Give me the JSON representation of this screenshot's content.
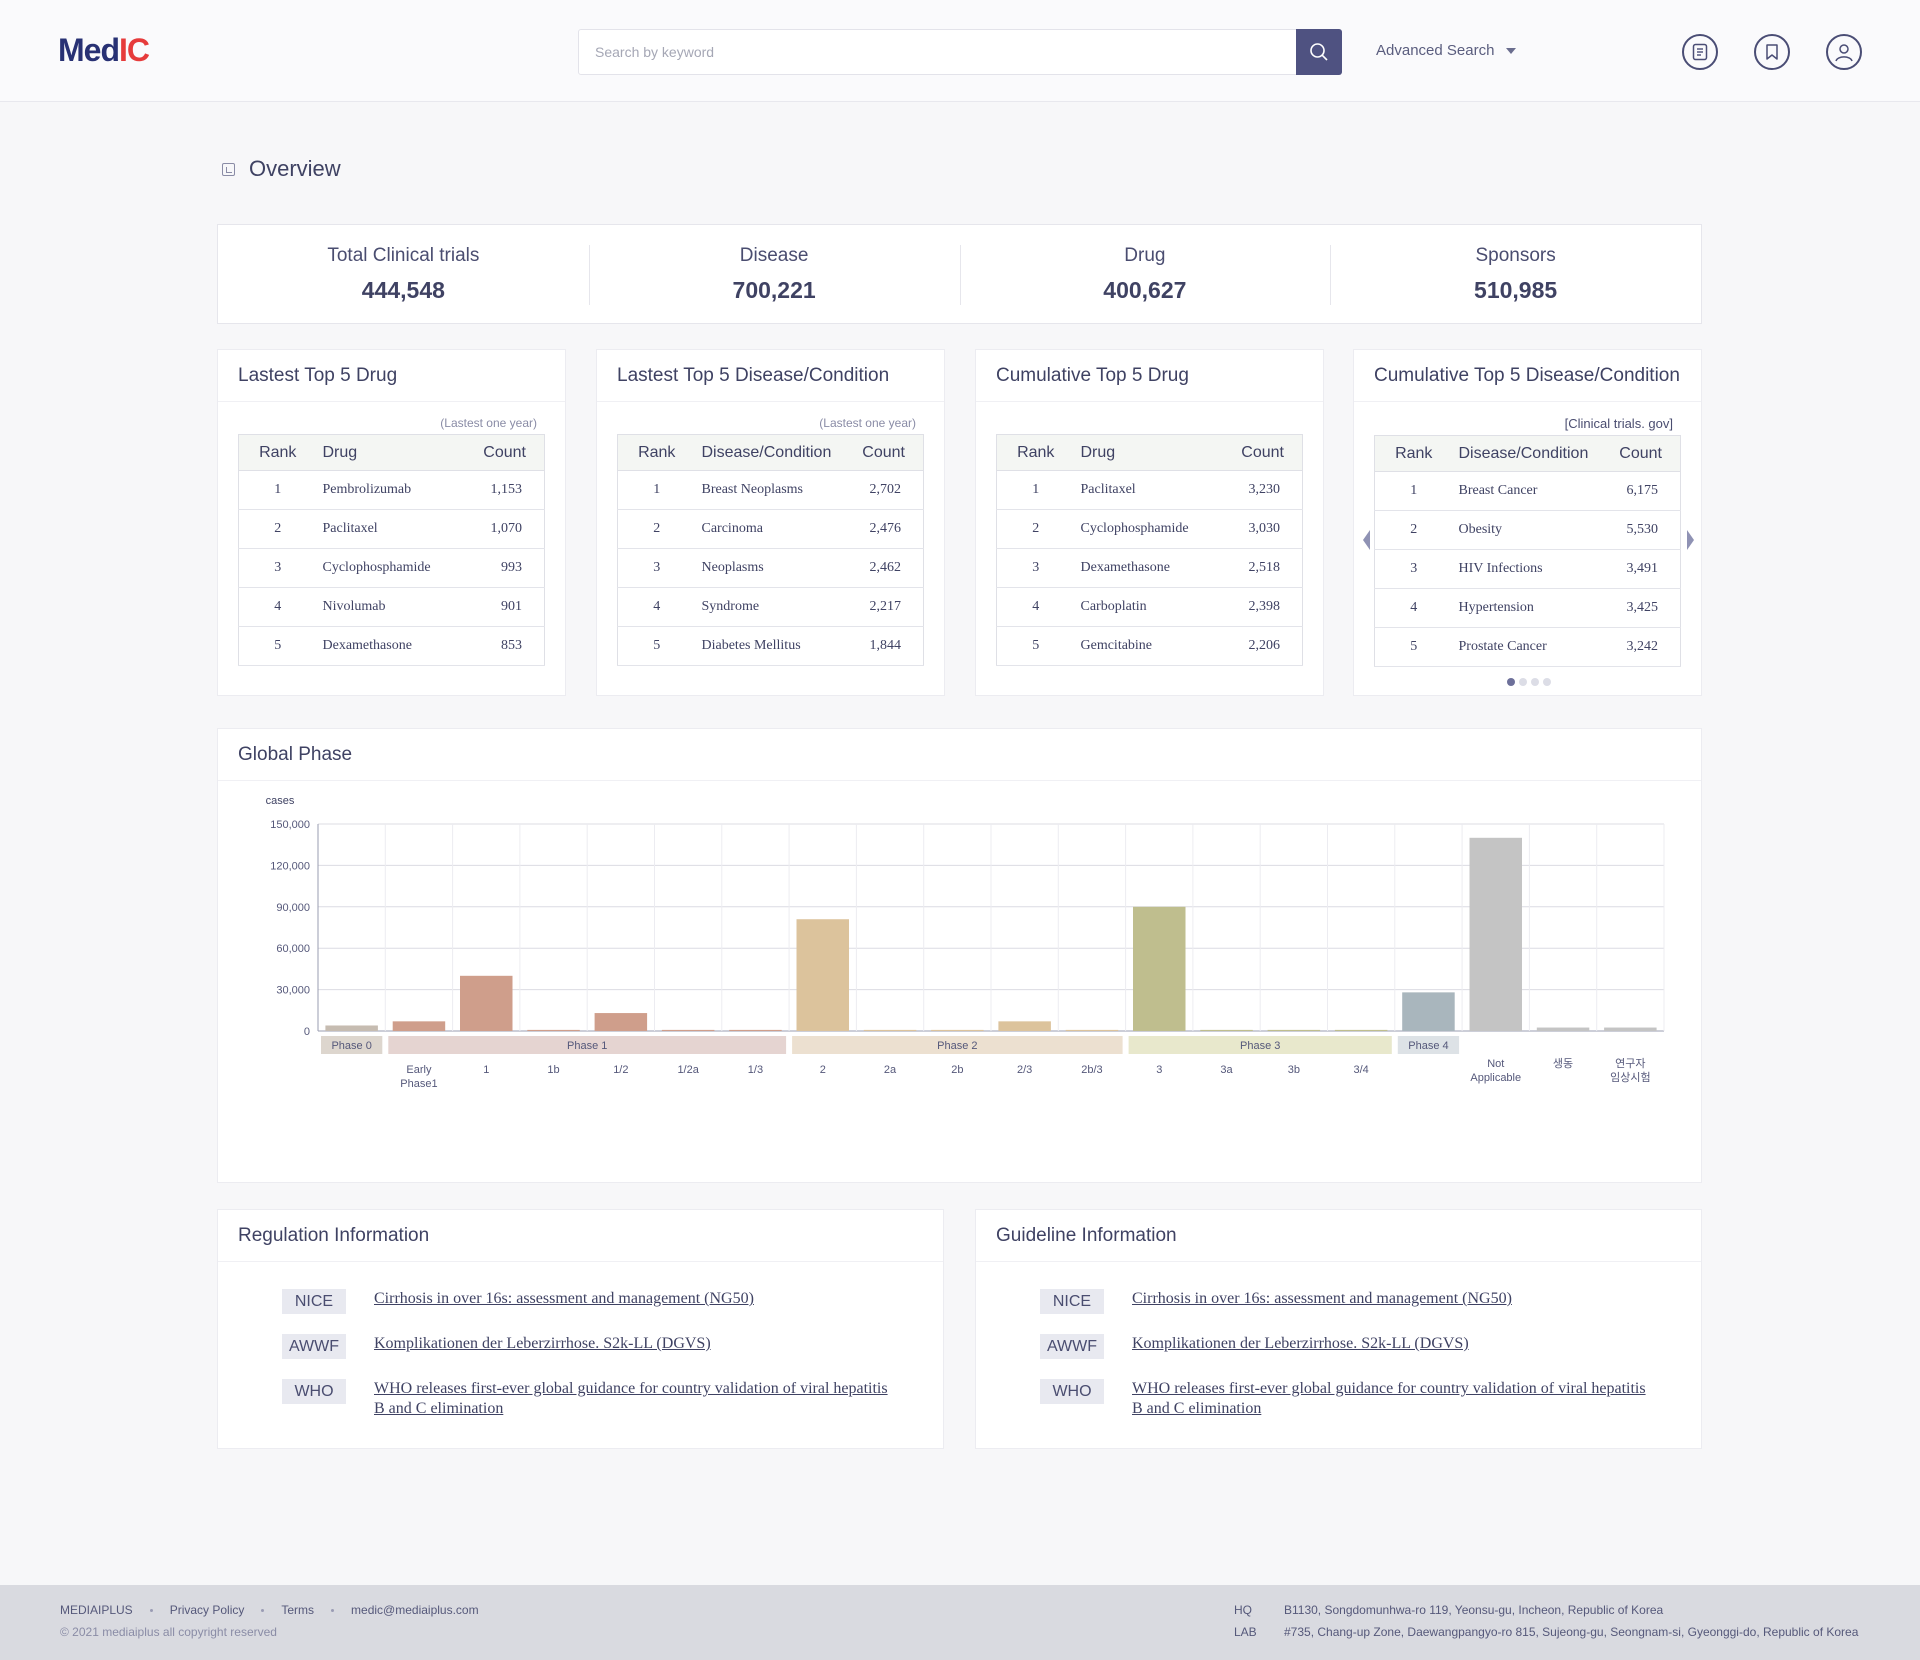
{
  "header": {
    "logo_main": "Med",
    "logo_accent": "IC",
    "search_placeholder": "Search by keyword",
    "advanced_search": "Advanced Search",
    "icons": [
      "list-book-icon",
      "bookmark-icon",
      "user-account-icon"
    ]
  },
  "overview": {
    "title": "Overview",
    "stats": [
      {
        "label": "Total Clinical trials",
        "value": "444,548"
      },
      {
        "label": "Disease",
        "value": "700,221"
      },
      {
        "label": "Drug",
        "value": "400,627"
      },
      {
        "label": "Sponsors",
        "value": "510,985"
      }
    ]
  },
  "cards": [
    {
      "title": "Lastest Top 5 Drug",
      "note": "(Lastest one year)",
      "headers": [
        "Rank",
        "Drug",
        "Count"
      ],
      "rows": [
        [
          "1",
          "Pembrolizumab",
          "1,153"
        ],
        [
          "2",
          "Paclitaxel",
          "1,070"
        ],
        [
          "3",
          "Cyclophosphamide",
          "993"
        ],
        [
          "4",
          "Nivolumab",
          "901"
        ],
        [
          "5",
          "Dexamethasone",
          "853"
        ]
      ]
    },
    {
      "title": "Lastest Top 5 Disease/Condition",
      "note": "(Lastest one year)",
      "headers": [
        "Rank",
        "Disease/Condition",
        "Count"
      ],
      "rows": [
        [
          "1",
          "Breast Neoplasms",
          "2,702"
        ],
        [
          "2",
          "Carcinoma",
          "2,476"
        ],
        [
          "3",
          "Neoplasms",
          "2,462"
        ],
        [
          "4",
          "Syndrome",
          "2,217"
        ],
        [
          "5",
          "Diabetes Mellitus",
          "1,844"
        ]
      ]
    },
    {
      "title": "Cumulative Top 5 Drug",
      "note": "",
      "headers": [
        "Rank",
        "Drug",
        "Count"
      ],
      "rows": [
        [
          "1",
          "Paclitaxel",
          "3,230"
        ],
        [
          "2",
          "Cyclophosphamide",
          "3,030"
        ],
        [
          "3",
          "Dexamethasone",
          "2,518"
        ],
        [
          "4",
          "Carboplatin",
          "2,398"
        ],
        [
          "5",
          "Gemcitabine",
          "2,206"
        ]
      ]
    },
    {
      "title": "Cumulative Top 5 Disease/Condition",
      "note": "[Clinical trials. gov]",
      "headers": [
        "Rank",
        "Disease/Condition",
        "Count"
      ],
      "rows": [
        [
          "1",
          "Breast Cancer",
          "6,175"
        ],
        [
          "2",
          "Obesity",
          "5,530"
        ],
        [
          "3",
          "HIV Infections",
          "3,491"
        ],
        [
          "4",
          "Hypertension",
          "3,425"
        ],
        [
          "5",
          "Prostate Cancer",
          "3,242"
        ]
      ]
    }
  ],
  "carousel": {
    "pages": 4,
    "active": 0
  },
  "global_phase": {
    "title": "Global Phase"
  },
  "chart_data": {
    "type": "bar",
    "title": "Global Phase",
    "ylabel": "cases",
    "ylim": [
      0,
      150000
    ],
    "yticks": [
      0,
      30000,
      60000,
      90000,
      120000,
      150000
    ],
    "ytick_labels": [
      "0",
      "30,000",
      "60,000",
      "90,000",
      "120,000",
      "150,000"
    ],
    "grid": true,
    "categories": [
      "",
      "Early Phase1",
      "1",
      "1b",
      "1/2",
      "1/2a",
      "1/3",
      "2",
      "2a",
      "2b",
      "2/3",
      "2b/3",
      "3",
      "3a",
      "3b",
      "3/4",
      "",
      "Not Applicable",
      "생동",
      "연구자 임상시험"
    ],
    "values": [
      4000,
      7000,
      40000,
      800,
      13000,
      800,
      800,
      81000,
      800,
      800,
      7000,
      800,
      90000,
      800,
      800,
      800,
      28000,
      140000,
      2500,
      2500
    ],
    "colors": [
      "#c6bcb1",
      "#cf9e8b",
      "#cf9e8b",
      "#cf9e8b",
      "#cf9e8b",
      "#cf9e8b",
      "#cf9e8b",
      "#dcc39c",
      "#dcc39c",
      "#dcc39c",
      "#dcc39c",
      "#dcc39c",
      "#bfbe8e",
      "#bfbe8e",
      "#bfbe8e",
      "#bfbe8e",
      "#a9b6bd",
      "#c4c4c4",
      "#c4c4c4",
      "#c4c4c4"
    ],
    "groups": [
      {
        "label": "Phase 0",
        "from": 0,
        "to": 0,
        "color": "#ddd6ce"
      },
      {
        "label": "Phase 1",
        "from": 1,
        "to": 6,
        "color": "#e5d4d1"
      },
      {
        "label": "Phase 2",
        "from": 7,
        "to": 11,
        "color": "#ece0d0"
      },
      {
        "label": "Phase 3",
        "from": 12,
        "to": 15,
        "color": "#e8e8cc"
      },
      {
        "label": "Phase 4",
        "from": 16,
        "to": 16,
        "color": "#dde2e6"
      }
    ]
  },
  "regulation": {
    "title": "Regulation Information",
    "items": [
      {
        "tag": "NICE",
        "text": "Cirrhosis in over 16s: assessment and management (NG50)"
      },
      {
        "tag": "AWWF",
        "text": "Komplikationen der Leberzirrhose. S2k-LL (DGVS)"
      },
      {
        "tag": "WHO",
        "text": "WHO releases first-ever global guidance for country validation of viral hepatitis B and C elimination"
      }
    ]
  },
  "guideline": {
    "title": "Guideline Information",
    "items": [
      {
        "tag": "NICE",
        "text": "Cirrhosis in over 16s: assessment and management (NG50)"
      },
      {
        "tag": "AWWF",
        "text": "Komplikationen der Leberzirrhose. S2k-LL (DGVS)"
      },
      {
        "tag": "WHO",
        "text": "WHO releases first-ever global guidance for country validation of viral hepatitis B and C elimination"
      }
    ]
  },
  "footer": {
    "links": [
      "MEDIAIPLUS",
      "Privacy Policy",
      "Terms",
      "medic@mediaiplus.com"
    ],
    "copyright": "© 2021 mediaiplus all copyright reserved",
    "hq_label": "HQ",
    "hq_address": "B1130, Songdomunhwa-ro 119, Yeonsu-gu, Incheon, Republic of Korea",
    "lab_label": "LAB",
    "lab_address": "#735, Chang-up Zone, Daewangpangyo-ro 815, Sujeong-gu, Seongnam-si,  Gyeonggi-do, Republic of Korea"
  }
}
